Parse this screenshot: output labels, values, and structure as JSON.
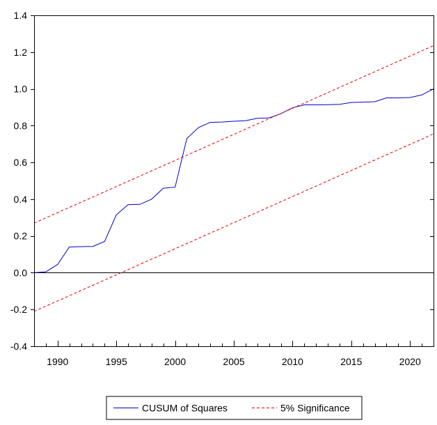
{
  "chart_data": {
    "type": "line",
    "title": "",
    "xlabel": "",
    "ylabel": "",
    "xlim": [
      1988,
      2022
    ],
    "ylim": [
      -0.4,
      1.4
    ],
    "y_ticks": [
      "-0.4",
      "-0.2",
      "0.0",
      "0.2",
      "0.4",
      "0.6",
      "0.8",
      "1.0",
      "1.2",
      "1.4"
    ],
    "y_tick_values": [
      -0.4,
      -0.2,
      0.0,
      0.2,
      0.4,
      0.6,
      0.8,
      1.0,
      1.2,
      1.4
    ],
    "x_ticks": [
      "1990",
      "1995",
      "2000",
      "2005",
      "2010",
      "2015",
      "2020"
    ],
    "x_tick_values": [
      1990,
      1995,
      2000,
      2005,
      2010,
      2015,
      2020
    ],
    "grid": false,
    "zero_line": true,
    "legend_position": "bottom-center",
    "series": [
      {
        "name": "CUSUM of Squares",
        "color": "#0000cc",
        "style": "solid",
        "x": [
          1988,
          1989,
          1990,
          1991,
          1992,
          1993,
          1994,
          1995,
          1996,
          1997,
          1998,
          1999,
          2000,
          2001,
          2002,
          2003,
          2004,
          2005,
          2006,
          2007,
          2008,
          2009,
          2010,
          2011,
          2012,
          2013,
          2014,
          2015,
          2016,
          2017,
          2018,
          2019,
          2020,
          2021,
          2022
        ],
        "y": [
          0.0,
          0.005,
          0.045,
          0.14,
          0.142,
          0.143,
          0.17,
          0.315,
          0.37,
          0.372,
          0.4,
          0.46,
          0.465,
          0.73,
          0.79,
          0.818,
          0.82,
          0.824,
          0.827,
          0.84,
          0.842,
          0.865,
          0.897,
          0.913,
          0.913,
          0.914,
          0.916,
          0.926,
          0.928,
          0.93,
          0.951,
          0.951,
          0.953,
          0.967,
          1.0
        ]
      },
      {
        "name": "5% Significance",
        "color": "#e00000",
        "style": "dashed",
        "x": [
          1988,
          2022
        ],
        "y": [
          0.27,
          1.235
        ]
      },
      {
        "name": "",
        "color": "#e00000",
        "style": "dashed",
        "x": [
          1988,
          2022
        ],
        "y": [
          -0.21,
          0.755
        ]
      }
    ]
  }
}
